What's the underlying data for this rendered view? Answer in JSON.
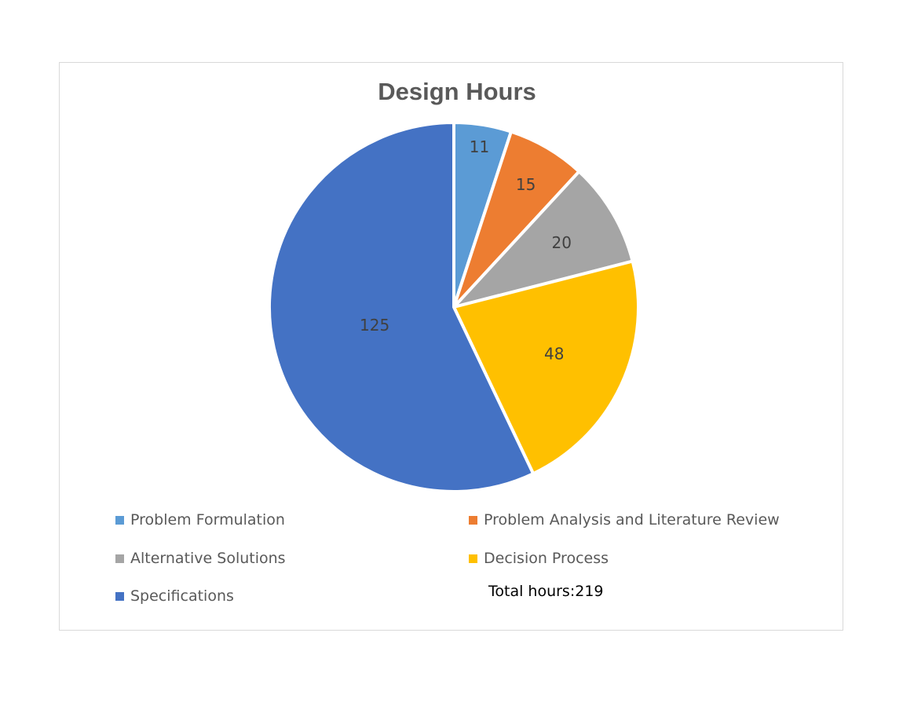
{
  "chart_data": {
    "type": "pie",
    "title": "Design Hours",
    "categories": [
      "Problem Formulation",
      "Problem Analysis and Literature Review",
      "Alternative Solutions",
      "Decision Process",
      "Specifications"
    ],
    "values": [
      11,
      15,
      20,
      48,
      125
    ],
    "colors": [
      "#5b9bd5",
      "#ed7d31",
      "#a5a5a5",
      "#ffc000",
      "#4472c4"
    ],
    "data_labels": [
      "11",
      "15",
      "20",
      "48",
      "125"
    ],
    "legend_placement": "bottom"
  },
  "annotation": {
    "total_text": "Total hours:219"
  }
}
